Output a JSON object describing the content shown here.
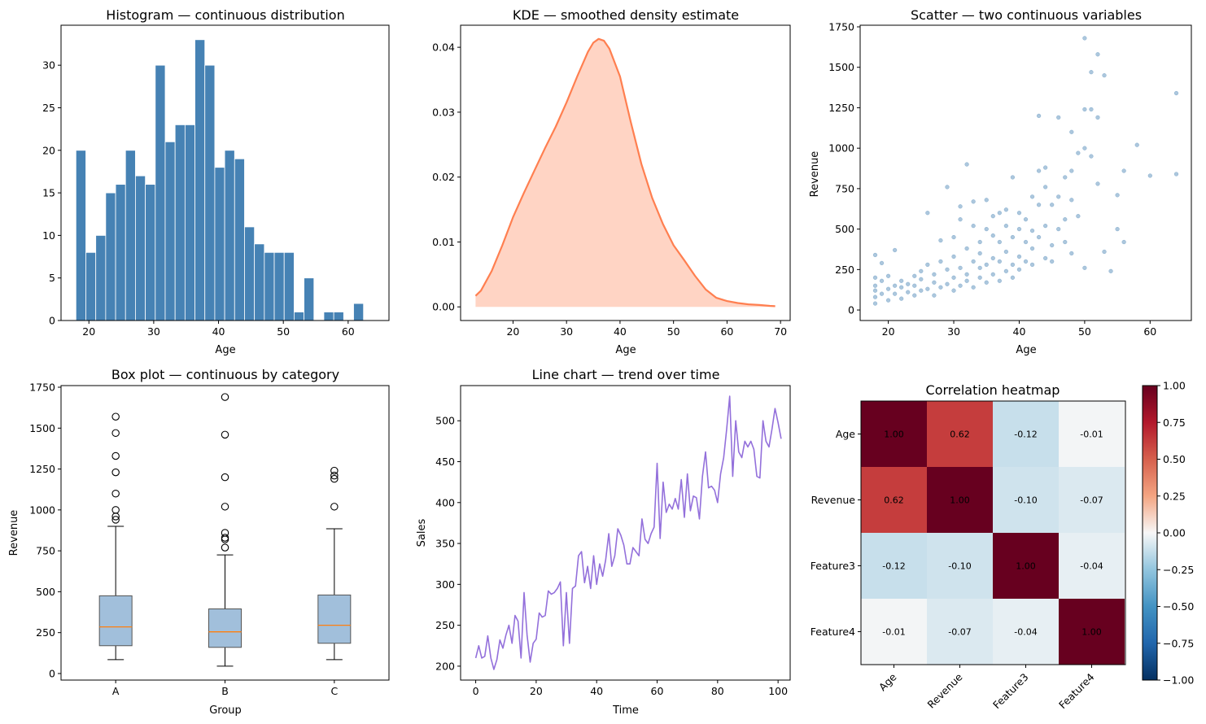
{
  "colors": {
    "hist": "#4682b4",
    "kde_line": "#ff7f50",
    "kde_fill": "#ffd4c4",
    "scatter": "#4682b4",
    "box_fill": "#a1bfdb",
    "box_median": "#ff7f0e",
    "line": "#9370db"
  },
  "chart_data": [
    {
      "type": "bar",
      "subtype": "histogram",
      "title": "Histogram — continuous distribution",
      "xlabel": "Age",
      "ylabel": "",
      "xlim": [
        15.7,
        66.3
      ],
      "ylim": [
        0,
        34.7
      ],
      "xticks": [
        20,
        30,
        40,
        50,
        60
      ],
      "yticks": [
        0,
        5,
        10,
        15,
        20,
        25,
        30
      ],
      "bin_start": 18,
      "bin_width": 1.53,
      "counts": [
        20,
        8,
        10,
        15,
        16,
        20,
        17,
        16,
        30,
        21,
        23,
        23,
        33,
        30,
        18,
        20,
        19,
        11,
        9,
        8,
        8,
        8,
        1,
        5,
        0,
        1,
        1,
        0,
        2
      ]
    },
    {
      "type": "area",
      "subtype": "kde",
      "title": "KDE — smoothed density estimate",
      "xlabel": "Age",
      "ylabel": "",
      "xlim": [
        10.2,
        71.8
      ],
      "ylim": [
        -0.0021,
        0.0434
      ],
      "xticks": [
        20,
        30,
        40,
        50,
        60,
        70
      ],
      "yticks": [
        0.0,
        0.01,
        0.02,
        0.03,
        0.04
      ],
      "ytick_labels": [
        "0.00",
        "0.01",
        "0.02",
        "0.03",
        "0.04"
      ],
      "x": [
        13,
        14,
        16,
        18,
        20,
        22,
        24,
        26,
        28,
        30,
        32,
        34,
        35,
        36,
        37,
        38,
        40,
        42,
        44,
        46,
        48,
        50,
        52,
        54,
        56,
        58,
        60,
        62,
        64,
        66,
        68,
        69
      ],
      "y": [
        0.0017,
        0.0025,
        0.0055,
        0.0095,
        0.0138,
        0.0175,
        0.021,
        0.0245,
        0.0278,
        0.0315,
        0.0355,
        0.0393,
        0.0407,
        0.0413,
        0.041,
        0.0398,
        0.0355,
        0.0285,
        0.022,
        0.0168,
        0.0128,
        0.0095,
        0.0072,
        0.0048,
        0.0027,
        0.0014,
        0.0009,
        0.0006,
        0.0004,
        0.0003,
        0.00015,
        0.0001
      ]
    },
    {
      "type": "scatter",
      "title": "Scatter — two continuous variables",
      "xlabel": "Age",
      "ylabel": "Revenue",
      "xlim": [
        15.7,
        66.3
      ],
      "ylim": [
        -65,
        1760
      ],
      "xticks": [
        20,
        30,
        40,
        50,
        60
      ],
      "yticks": [
        0,
        250,
        500,
        750,
        1000,
        1250,
        1500,
        1750
      ],
      "points": [
        [
          18,
          40
        ],
        [
          18,
          80
        ],
        [
          18,
          120
        ],
        [
          18,
          150
        ],
        [
          18,
          200
        ],
        [
          18,
          340
        ],
        [
          19,
          100
        ],
        [
          19,
          180
        ],
        [
          19,
          290
        ],
        [
          20,
          60
        ],
        [
          20,
          130
        ],
        [
          20,
          210
        ],
        [
          21,
          100
        ],
        [
          21,
          150
        ],
        [
          21,
          370
        ],
        [
          22,
          70
        ],
        [
          22,
          140
        ],
        [
          22,
          180
        ],
        [
          23,
          110
        ],
        [
          23,
          160
        ],
        [
          24,
          90
        ],
        [
          24,
          150
        ],
        [
          24,
          210
        ],
        [
          25,
          120
        ],
        [
          25,
          190
        ],
        [
          25,
          240
        ],
        [
          26,
          130
        ],
        [
          26,
          600
        ],
        [
          26,
          280
        ],
        [
          27,
          90
        ],
        [
          27,
          170
        ],
        [
          27,
          220
        ],
        [
          28,
          140
        ],
        [
          28,
          300
        ],
        [
          28,
          430
        ],
        [
          29,
          160
        ],
        [
          29,
          250
        ],
        [
          29,
          760
        ],
        [
          30,
          120
        ],
        [
          30,
          200
        ],
        [
          30,
          330
        ],
        [
          30,
          450
        ],
        [
          31,
          150
        ],
        [
          31,
          260
        ],
        [
          31,
          560
        ],
        [
          31,
          640
        ],
        [
          32,
          180
        ],
        [
          32,
          220
        ],
        [
          32,
          900
        ],
        [
          32,
          380
        ],
        [
          33,
          140
        ],
        [
          33,
          300
        ],
        [
          33,
          520
        ],
        [
          33,
          670
        ],
        [
          34,
          200
        ],
        [
          34,
          260
        ],
        [
          34,
          350
        ],
        [
          34,
          420
        ],
        [
          35,
          170
        ],
        [
          35,
          280
        ],
        [
          35,
          500
        ],
        [
          35,
          680
        ],
        [
          36,
          220
        ],
        [
          36,
          320
        ],
        [
          36,
          460
        ],
        [
          36,
          580
        ],
        [
          37,
          180
        ],
        [
          37,
          300
        ],
        [
          37,
          420
        ],
        [
          37,
          600
        ],
        [
          38,
          240
        ],
        [
          38,
          360
        ],
        [
          38,
          520
        ],
        [
          38,
          620
        ],
        [
          39,
          200
        ],
        [
          39,
          280
        ],
        [
          39,
          450
        ],
        [
          39,
          820
        ],
        [
          40,
          250
        ],
        [
          40,
          330
        ],
        [
          40,
          500
        ],
        [
          40,
          600
        ],
        [
          41,
          300
        ],
        [
          41,
          420
        ],
        [
          41,
          560
        ],
        [
          42,
          280
        ],
        [
          42,
          380
        ],
        [
          42,
          700
        ],
        [
          42,
          490
        ],
        [
          43,
          1200
        ],
        [
          43,
          860
        ],
        [
          43,
          650
        ],
        [
          43,
          450
        ],
        [
          44,
          320
        ],
        [
          44,
          520
        ],
        [
          44,
          760
        ],
        [
          44,
          880
        ],
        [
          45,
          400
        ],
        [
          45,
          650
        ],
        [
          45,
          300
        ],
        [
          46,
          1190
        ],
        [
          46,
          700
        ],
        [
          46,
          500
        ],
        [
          47,
          560
        ],
        [
          47,
          820
        ],
        [
          47,
          420
        ],
        [
          48,
          1100
        ],
        [
          48,
          860
        ],
        [
          48,
          680
        ],
        [
          48,
          350
        ],
        [
          49,
          970
        ],
        [
          49,
          580
        ],
        [
          50,
          1240
        ],
        [
          50,
          1000
        ],
        [
          50,
          1680
        ],
        [
          50,
          260
        ],
        [
          51,
          1240
        ],
        [
          51,
          950
        ],
        [
          51,
          1470
        ],
        [
          52,
          1580
        ],
        [
          52,
          1190
        ],
        [
          52,
          780
        ],
        [
          53,
          1450
        ],
        [
          53,
          360
        ],
        [
          54,
          240
        ],
        [
          55,
          710
        ],
        [
          55,
          500
        ],
        [
          56,
          420
        ],
        [
          56,
          860
        ],
        [
          58,
          1020
        ],
        [
          60,
          830
        ],
        [
          64,
          1340
        ],
        [
          64,
          840
        ]
      ]
    },
    {
      "type": "box",
      "title": "Box plot — continuous by category",
      "xlabel": "Group",
      "ylabel": "Revenue",
      "ylim": [
        -40,
        1760
      ],
      "yticks": [
        0,
        250,
        500,
        750,
        1000,
        1250,
        1500,
        1750
      ],
      "categories": [
        "A",
        "B",
        "C"
      ],
      "series": [
        {
          "name": "A",
          "whisker_low": 85,
          "q1": 170,
          "median": 285,
          "q3": 475,
          "whisker_high": 900,
          "outliers": [
            940,
            960,
            1000,
            1100,
            1230,
            1330,
            1470,
            1570
          ]
        },
        {
          "name": "B",
          "whisker_low": 45,
          "q1": 160,
          "median": 255,
          "q3": 395,
          "whisker_high": 725,
          "outliers": [
            770,
            820,
            830,
            860,
            1020,
            1200,
            1460,
            1690
          ]
        },
        {
          "name": "C",
          "whisker_low": 85,
          "q1": 185,
          "median": 295,
          "q3": 480,
          "whisker_high": 885,
          "outliers": [
            1020,
            1190,
            1210,
            1240
          ]
        }
      ]
    },
    {
      "type": "line",
      "title": "Line chart — trend over time",
      "xlabel": "Time",
      "ylabel": "Sales",
      "xlim": [
        -5,
        104
      ],
      "ylim": [
        183,
        543
      ],
      "xticks": [
        0,
        20,
        40,
        60,
        80,
        100
      ],
      "yticks": [
        200,
        250,
        300,
        350,
        400,
        450,
        500
      ],
      "values": [
        210,
        225,
        210,
        212,
        237,
        210,
        196,
        208,
        232,
        222,
        238,
        250,
        228,
        262,
        255,
        210,
        290,
        238,
        205,
        228,
        233,
        265,
        260,
        262,
        292,
        288,
        290,
        295,
        303,
        225,
        290,
        228,
        295,
        298,
        335,
        340,
        302,
        322,
        295,
        335,
        300,
        325,
        310,
        330,
        362,
        322,
        335,
        368,
        360,
        348,
        325,
        325,
        345,
        340,
        335,
        380,
        355,
        350,
        362,
        370,
        448,
        356,
        425,
        388,
        398,
        392,
        405,
        392,
        428,
        382,
        435,
        390,
        408,
        406,
        380,
        432,
        462,
        418,
        420,
        415,
        400,
        435,
        455,
        490,
        530,
        432,
        500,
        462,
        455,
        475,
        468,
        475,
        465,
        432,
        430,
        500,
        475,
        468,
        490,
        515,
        498,
        478
      ]
    },
    {
      "type": "heatmap",
      "title": "Correlation heatmap",
      "labels": [
        "Age",
        "Revenue",
        "Feature3",
        "Feature4"
      ],
      "matrix": [
        [
          1.0,
          0.62,
          -0.12,
          -0.01
        ],
        [
          0.62,
          1.0,
          -0.1,
          -0.07
        ],
        [
          -0.12,
          -0.1,
          1.0,
          -0.04
        ],
        [
          -0.01,
          -0.07,
          -0.04,
          1.0
        ]
      ],
      "cell_text": [
        [
          "1.00",
          "0.62",
          "-0.12",
          "-0.01"
        ],
        [
          "0.62",
          "1.00",
          "-0.10",
          "-0.07"
        ],
        [
          "-0.12",
          "-0.10",
          "1.00",
          "-0.04"
        ],
        [
          "-0.01",
          "-0.07",
          "-0.04",
          "1.00"
        ]
      ],
      "colormap": "RdBu_r",
      "vmin": -1.0,
      "vmax": 1.0,
      "colorbar_ticks": [
        1.0,
        0.75,
        0.5,
        0.25,
        0.0,
        -0.25,
        -0.5,
        -0.75,
        -1.0
      ],
      "colorbar_tick_labels": [
        "1.00",
        "0.75",
        "0.50",
        "0.25",
        "0.00",
        "−0.25",
        "−0.50",
        "−0.75",
        "−1.00"
      ]
    }
  ]
}
